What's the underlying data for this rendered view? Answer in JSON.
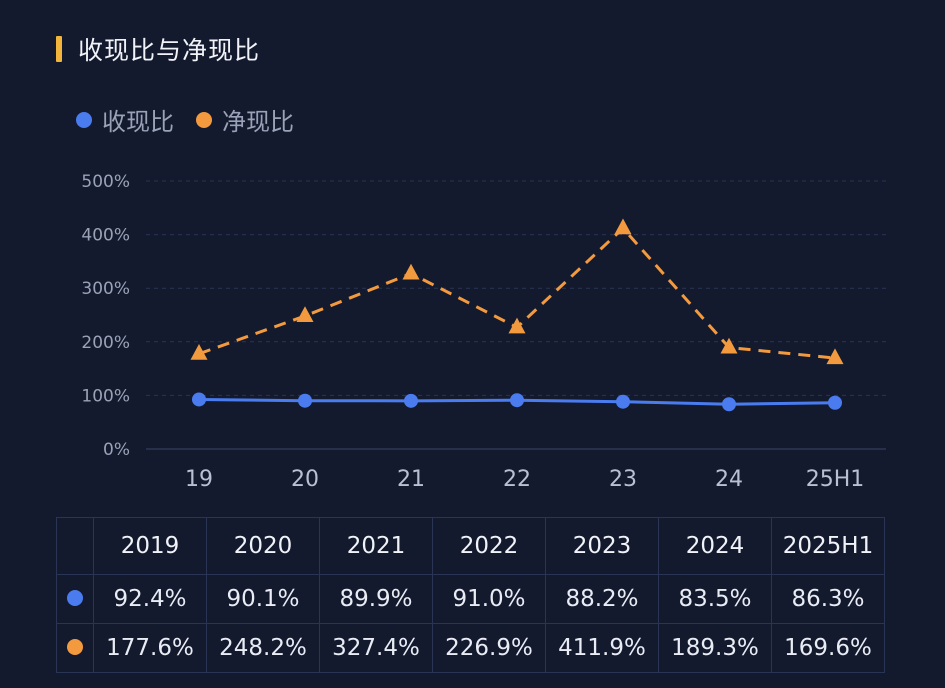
{
  "title": "收现比与净现比",
  "colors": {
    "blue": "#4a7cf0",
    "orange": "#f39a3f",
    "accent": "#f2b43a"
  },
  "chart_data": {
    "type": "line",
    "title": "收现比与净现比",
    "categories": [
      "19",
      "20",
      "21",
      "22",
      "23",
      "24",
      "25H1"
    ],
    "yticks": [
      "0%",
      "100%",
      "200%",
      "300%",
      "400%",
      "500%"
    ],
    "ylim": [
      0,
      500
    ],
    "series": [
      {
        "name": "收现比",
        "color": "#4a7cf0",
        "marker": "circle",
        "style": "solid",
        "values": [
          92.4,
          90.1,
          89.9,
          91.0,
          88.2,
          83.5,
          86.3
        ]
      },
      {
        "name": "净现比",
        "color": "#f39a3f",
        "marker": "triangle",
        "style": "dashed",
        "values": [
          177.6,
          248.2,
          327.4,
          226.9,
          411.9,
          189.3,
          169.6
        ]
      }
    ]
  },
  "table": {
    "headers": [
      "2019",
      "2020",
      "2021",
      "2022",
      "2023",
      "2024",
      "2025H1"
    ],
    "rows": [
      {
        "color": "#4a7cf0",
        "values": [
          "92.4%",
          "90.1%",
          "89.9%",
          "91.0%",
          "88.2%",
          "83.5%",
          "86.3%"
        ]
      },
      {
        "color": "#f39a3f",
        "values": [
          "177.6%",
          "248.2%",
          "327.4%",
          "226.9%",
          "411.9%",
          "189.3%",
          "169.6%"
        ]
      }
    ]
  }
}
